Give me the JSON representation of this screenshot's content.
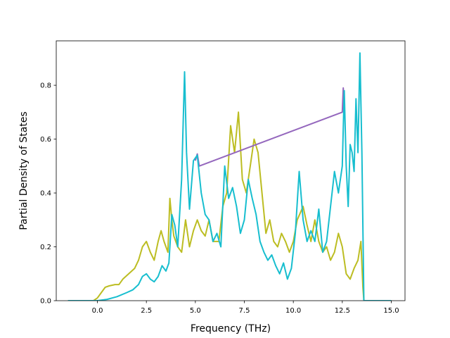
{
  "chart_data": {
    "type": "line",
    "title": "",
    "xlabel": "Frequency (THz)",
    "ylabel": "Partial Density of States",
    "xlim": [
      -2.1,
      15.7
    ],
    "ylim": [
      0,
      0.965
    ],
    "x_ticks": [
      0.0,
      2.5,
      5.0,
      7.5,
      10.0,
      12.5,
      15.0
    ],
    "x_tick_labels": [
      "0.0",
      "2.5",
      "5.0",
      "7.5",
      "10.0",
      "12.5",
      "15.0"
    ],
    "y_ticks": [
      0.0,
      0.2,
      0.4,
      0.6,
      0.8
    ],
    "y_tick_labels": [
      "0.0",
      "0.2",
      "0.4",
      "0.6",
      "0.8"
    ],
    "grid": false,
    "legend": "none",
    "series": [
      {
        "color": "#bcbd22",
        "points": [
          [
            -1.5,
            0.0
          ],
          [
            -0.2,
            0.0
          ],
          [
            0.0,
            0.01
          ],
          [
            0.2,
            0.03
          ],
          [
            0.4,
            0.05
          ],
          [
            0.6,
            0.055
          ],
          [
            0.9,
            0.06
          ],
          [
            1.1,
            0.06
          ],
          [
            1.3,
            0.08
          ],
          [
            1.6,
            0.1
          ],
          [
            1.9,
            0.12
          ],
          [
            2.1,
            0.15
          ],
          [
            2.3,
            0.2
          ],
          [
            2.5,
            0.22
          ],
          [
            2.7,
            0.18
          ],
          [
            2.9,
            0.15
          ],
          [
            3.1,
            0.22
          ],
          [
            3.25,
            0.26
          ],
          [
            3.4,
            0.22
          ],
          [
            3.6,
            0.18
          ],
          [
            3.7,
            0.38
          ],
          [
            3.8,
            0.3
          ],
          [
            3.9,
            0.24
          ],
          [
            4.1,
            0.2
          ],
          [
            4.3,
            0.18
          ],
          [
            4.5,
            0.3
          ],
          [
            4.7,
            0.2
          ],
          [
            4.9,
            0.26
          ],
          [
            5.1,
            0.3
          ],
          [
            5.3,
            0.26
          ],
          [
            5.5,
            0.24
          ],
          [
            5.7,
            0.3
          ],
          [
            5.9,
            0.22
          ],
          [
            6.2,
            0.22
          ],
          [
            6.4,
            0.35
          ],
          [
            6.6,
            0.4
          ],
          [
            6.8,
            0.65
          ],
          [
            7.0,
            0.55
          ],
          [
            7.2,
            0.7
          ],
          [
            7.4,
            0.45
          ],
          [
            7.6,
            0.4
          ],
          [
            7.8,
            0.5
          ],
          [
            8.0,
            0.6
          ],
          [
            8.2,
            0.55
          ],
          [
            8.4,
            0.4
          ],
          [
            8.6,
            0.25
          ],
          [
            8.8,
            0.3
          ],
          [
            9.0,
            0.22
          ],
          [
            9.2,
            0.2
          ],
          [
            9.4,
            0.25
          ],
          [
            9.6,
            0.22
          ],
          [
            9.8,
            0.18
          ],
          [
            10.0,
            0.22
          ],
          [
            10.2,
            0.3
          ],
          [
            10.5,
            0.35
          ],
          [
            10.7,
            0.28
          ],
          [
            10.9,
            0.22
          ],
          [
            11.1,
            0.3
          ],
          [
            11.3,
            0.22
          ],
          [
            11.5,
            0.18
          ],
          [
            11.7,
            0.2
          ],
          [
            11.9,
            0.15
          ],
          [
            12.1,
            0.18
          ],
          [
            12.3,
            0.25
          ],
          [
            12.5,
            0.2
          ],
          [
            12.7,
            0.1
          ],
          [
            12.9,
            0.08
          ],
          [
            13.1,
            0.12
          ],
          [
            13.3,
            0.15
          ],
          [
            13.45,
            0.22
          ],
          [
            13.55,
            0.05
          ],
          [
            13.6,
            0.0
          ],
          [
            15.0,
            0.0
          ]
        ]
      },
      {
        "color": "#9467bd",
        "points": [
          [
            5.0,
            0.52
          ],
          [
            5.1,
            0.545
          ],
          [
            5.2,
            0.5
          ],
          [
            12.5,
            0.7
          ],
          [
            12.55,
            0.79
          ],
          [
            12.6,
            0.7
          ]
        ]
      },
      {
        "color": "#17becf",
        "points": [
          [
            -1.5,
            0.0
          ],
          [
            0.0,
            0.0
          ],
          [
            0.5,
            0.005
          ],
          [
            1.0,
            0.015
          ],
          [
            1.5,
            0.03
          ],
          [
            1.8,
            0.04
          ],
          [
            2.1,
            0.06
          ],
          [
            2.3,
            0.09
          ],
          [
            2.5,
            0.1
          ],
          [
            2.7,
            0.08
          ],
          [
            2.9,
            0.07
          ],
          [
            3.1,
            0.09
          ],
          [
            3.3,
            0.13
          ],
          [
            3.5,
            0.11
          ],
          [
            3.65,
            0.14
          ],
          [
            3.8,
            0.32
          ],
          [
            3.95,
            0.28
          ],
          [
            4.1,
            0.2
          ],
          [
            4.3,
            0.45
          ],
          [
            4.45,
            0.85
          ],
          [
            4.55,
            0.55
          ],
          [
            4.7,
            0.34
          ],
          [
            4.9,
            0.52
          ],
          [
            5.1,
            0.54
          ],
          [
            5.3,
            0.4
          ],
          [
            5.5,
            0.32
          ],
          [
            5.7,
            0.3
          ],
          [
            5.9,
            0.22
          ],
          [
            6.1,
            0.25
          ],
          [
            6.3,
            0.2
          ],
          [
            6.5,
            0.5
          ],
          [
            6.7,
            0.38
          ],
          [
            6.9,
            0.42
          ],
          [
            7.1,
            0.35
          ],
          [
            7.3,
            0.25
          ],
          [
            7.5,
            0.3
          ],
          [
            7.7,
            0.45
          ],
          [
            7.9,
            0.38
          ],
          [
            8.1,
            0.32
          ],
          [
            8.3,
            0.22
          ],
          [
            8.5,
            0.18
          ],
          [
            8.7,
            0.15
          ],
          [
            8.9,
            0.17
          ],
          [
            9.1,
            0.13
          ],
          [
            9.3,
            0.1
          ],
          [
            9.5,
            0.14
          ],
          [
            9.7,
            0.08
          ],
          [
            9.9,
            0.12
          ],
          [
            10.1,
            0.25
          ],
          [
            10.3,
            0.48
          ],
          [
            10.5,
            0.3
          ],
          [
            10.7,
            0.22
          ],
          [
            10.9,
            0.26
          ],
          [
            11.1,
            0.22
          ],
          [
            11.3,
            0.34
          ],
          [
            11.5,
            0.18
          ],
          [
            11.7,
            0.22
          ],
          [
            11.9,
            0.35
          ],
          [
            12.1,
            0.48
          ],
          [
            12.3,
            0.4
          ],
          [
            12.5,
            0.5
          ],
          [
            12.6,
            0.78
          ],
          [
            12.7,
            0.5
          ],
          [
            12.8,
            0.35
          ],
          [
            12.9,
            0.58
          ],
          [
            13.0,
            0.55
          ],
          [
            13.1,
            0.48
          ],
          [
            13.2,
            0.75
          ],
          [
            13.3,
            0.55
          ],
          [
            13.4,
            0.92
          ],
          [
            13.5,
            0.55
          ],
          [
            13.6,
            0.0
          ],
          [
            15.0,
            0.0
          ]
        ]
      }
    ]
  }
}
